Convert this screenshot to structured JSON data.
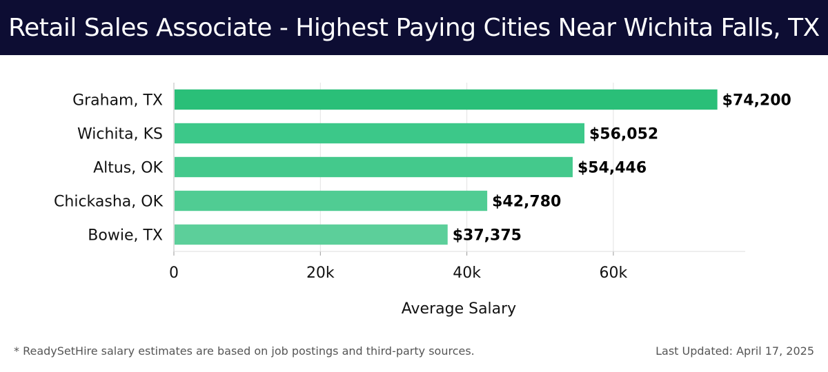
{
  "header": {
    "title": "Retail Sales Associate - Highest Paying Cities Near Wichita Falls, TX"
  },
  "chart_data": {
    "type": "bar",
    "orientation": "horizontal",
    "categories": [
      "Graham, TX",
      "Wichita, KS",
      "Altus, OK",
      "Chickasha, OK",
      "Bowie, TX"
    ],
    "values": [
      74200,
      56052,
      54446,
      42780,
      37375
    ],
    "value_labels": [
      "$74,200",
      "$56,052",
      "$54,446",
      "$42,780",
      "$37,375"
    ],
    "bar_colors": [
      "#2abf78",
      "#3cc889",
      "#44c98c",
      "#50cc93",
      "#5ccf9a"
    ],
    "xlabel": "Average Salary",
    "ylabel": "",
    "xlim": [
      0,
      78000
    ],
    "x_ticks": [
      0,
      20000,
      40000,
      60000
    ],
    "x_tick_labels": [
      "0",
      "20k",
      "40k",
      "60k"
    ],
    "grid": "vertical"
  },
  "footer": {
    "note": "* ReadySetHire salary estimates are based on job postings and third-party sources.",
    "updated": "Last Updated: April 17, 2025"
  }
}
